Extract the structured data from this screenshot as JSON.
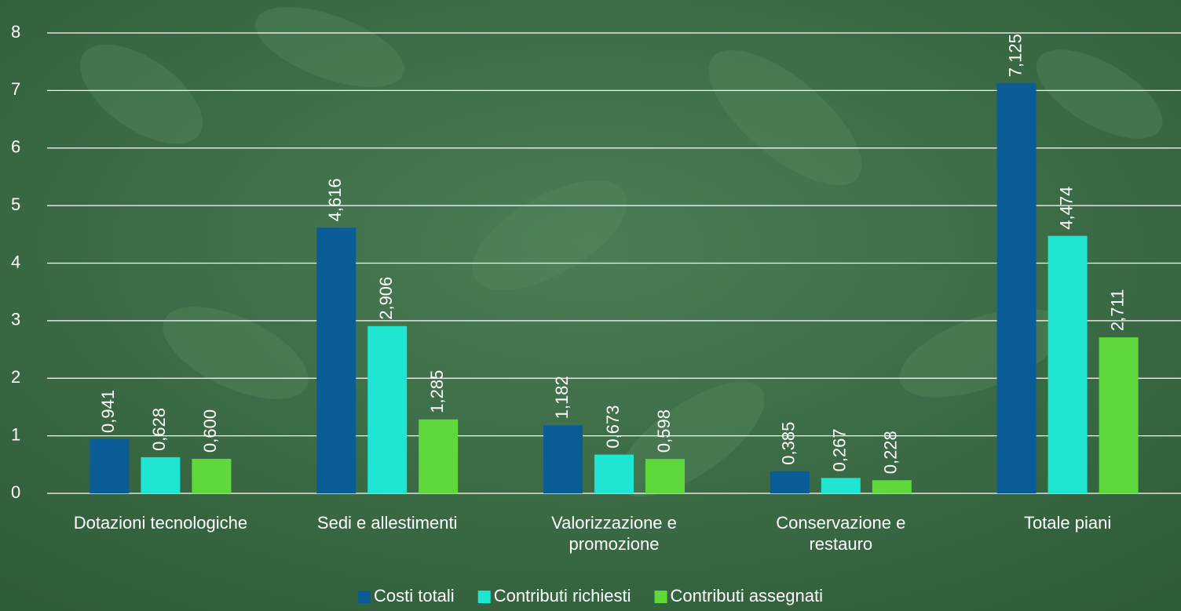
{
  "chart_data": {
    "type": "bar",
    "categories": [
      "Dotazioni tecnologiche",
      "Sedi e allestimenti",
      "Valorizzazione e promozione",
      "Conservazione e restauro",
      "Totale piani"
    ],
    "series": [
      {
        "name": "Costi totali",
        "color": "#0a5c96",
        "values": [
          0.941,
          4.616,
          1.182,
          0.385,
          7.125
        ],
        "value_labels": [
          "0,941",
          "4,616",
          "1,182",
          "0,385",
          "7,125"
        ]
      },
      {
        "name": "Contributi richiesti",
        "color": "#1ee6d3",
        "values": [
          0.628,
          2.906,
          0.673,
          0.267,
          4.474
        ],
        "value_labels": [
          "0,628",
          "2,906",
          "0,673",
          "0,267",
          "4,474"
        ]
      },
      {
        "name": "Contributi assegnati",
        "color": "#5fd83b",
        "values": [
          0.6,
          1.285,
          0.598,
          0.228,
          2.711
        ],
        "value_labels": [
          "0,600",
          "1,285",
          "0,598",
          "0,228",
          "2,711"
        ]
      }
    ],
    "ylim": [
      0,
      8
    ],
    "yticks": [
      0,
      1,
      2,
      3,
      4,
      5,
      6,
      7,
      8
    ],
    "grid": true,
    "legend": "bottom"
  }
}
